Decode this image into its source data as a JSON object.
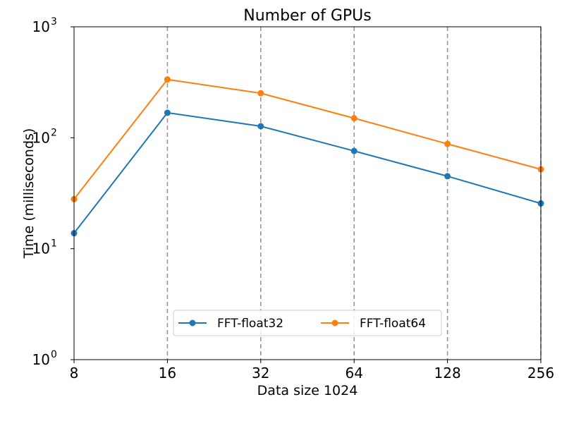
{
  "chart_data": {
    "type": "line",
    "title": "Number of GPUs",
    "xlabel": "Data size 1024",
    "ylabel": "Time (milliseconds)",
    "x_scale": "log2",
    "y_scale": "log10",
    "x": [
      8,
      16,
      32,
      64,
      128,
      256
    ],
    "x_tick_labels": [
      "8",
      "16",
      "32",
      "64",
      "128",
      "256"
    ],
    "y_ticks": [
      {
        "value": 1,
        "base": "10",
        "exp": "0"
      },
      {
        "value": 10,
        "base": "10",
        "exp": "1"
      },
      {
        "value": 100,
        "base": "10",
        "exp": "2"
      },
      {
        "value": 1000,
        "base": "10",
        "exp": "3"
      }
    ],
    "xlim": [
      8,
      256
    ],
    "ylim": [
      1,
      1000
    ],
    "vlines": [
      16,
      32,
      64,
      128,
      256
    ],
    "series": [
      {
        "name": "FFT-float32",
        "color": "#1f77b4",
        "values": [
          13.8,
          168,
          127,
          76,
          45,
          25.6
        ]
      },
      {
        "name": "FFT-float64",
        "color": "#ff7f0e",
        "values": [
          28,
          335,
          252,
          150,
          88,
          52
        ]
      }
    ],
    "legend_position": "bottom-center"
  }
}
